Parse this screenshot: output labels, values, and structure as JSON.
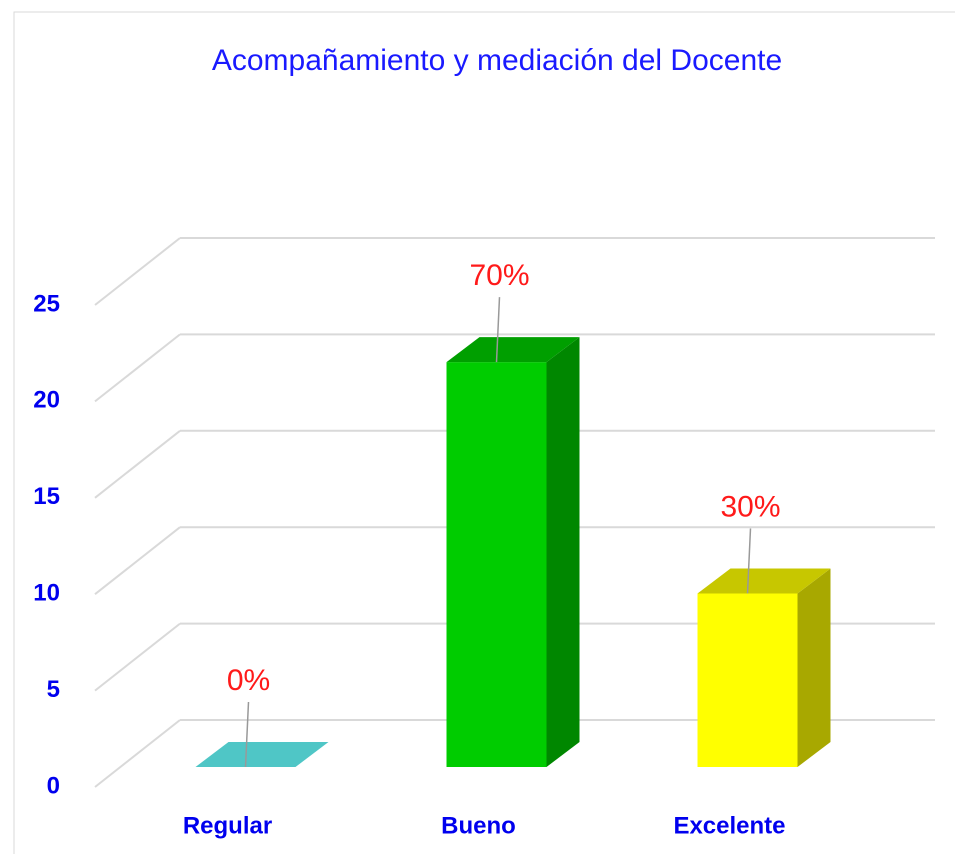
{
  "chart_data": {
    "type": "bar3d",
    "title": "Acompañamiento y mediación del Docente",
    "categories": [
      "Regular",
      "Bueno",
      "Excelente"
    ],
    "values": [
      0,
      21,
      9
    ],
    "value_labels": [
      "0%",
      "70%",
      "30%"
    ],
    "colors": [
      "#4fc6c6",
      "#00cc00",
      "#ffff00"
    ],
    "ylim": [
      0,
      25
    ],
    "yticks": [
      0,
      5,
      10,
      15,
      20,
      25
    ],
    "grid": true
  }
}
